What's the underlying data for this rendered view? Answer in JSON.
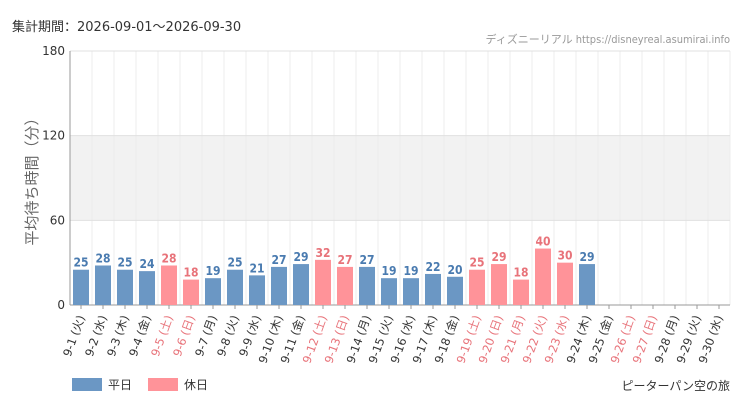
{
  "header": {
    "period": "集計期間：2026-09-01〜2026-09-30",
    "source": "ディズニーリアル https://disneyreal.asumirai.info"
  },
  "footer": {
    "attraction": "ピーターパン空の旅"
  },
  "colors": {
    "weekday": "#6b97c4",
    "holiday": "#ff9399",
    "holiday_label": "#e8737a",
    "band": "#f2f2f2"
  },
  "chart_data": {
    "type": "bar",
    "ylabel": "平均待ち時間（分）",
    "ylim": [
      0,
      180
    ],
    "yticks": [
      0,
      60,
      120,
      180
    ],
    "grid": true,
    "categories": [
      "9-1 (火)",
      "9-2 (水)",
      "9-3 (木)",
      "9-4 (金)",
      "9-5 (土)",
      "9-6 (日)",
      "9-7 (月)",
      "9-8 (火)",
      "9-9 (水)",
      "9-10 (木)",
      "9-11 (金)",
      "9-12 (土)",
      "9-13 (日)",
      "9-14 (月)",
      "9-15 (火)",
      "9-16 (水)",
      "9-17 (木)",
      "9-18 (金)",
      "9-19 (土)",
      "9-20 (日)",
      "9-21 (月)",
      "9-22 (火)",
      "9-23 (水)",
      "9-24 (木)",
      "9-25 (金)",
      "9-26 (土)",
      "9-27 (日)",
      "9-28 (月)",
      "9-29 (火)",
      "9-30 (水)"
    ],
    "holiday": [
      false,
      false,
      false,
      false,
      true,
      true,
      false,
      false,
      false,
      false,
      false,
      true,
      true,
      false,
      false,
      false,
      false,
      false,
      true,
      true,
      true,
      true,
      true,
      false,
      false,
      true,
      true,
      false,
      false,
      false
    ],
    "values": [
      25,
      28,
      25,
      24,
      28,
      18,
      19,
      25,
      21,
      27,
      29,
      32,
      27,
      27,
      19,
      19,
      22,
      20,
      25,
      29,
      18,
      40,
      30,
      29,
      null,
      null,
      null,
      null,
      null,
      null
    ],
    "legend": [
      {
        "name": "平日",
        "type": "weekday"
      },
      {
        "name": "休日",
        "type": "holiday"
      }
    ],
    "legend_position": "bottom-left"
  }
}
